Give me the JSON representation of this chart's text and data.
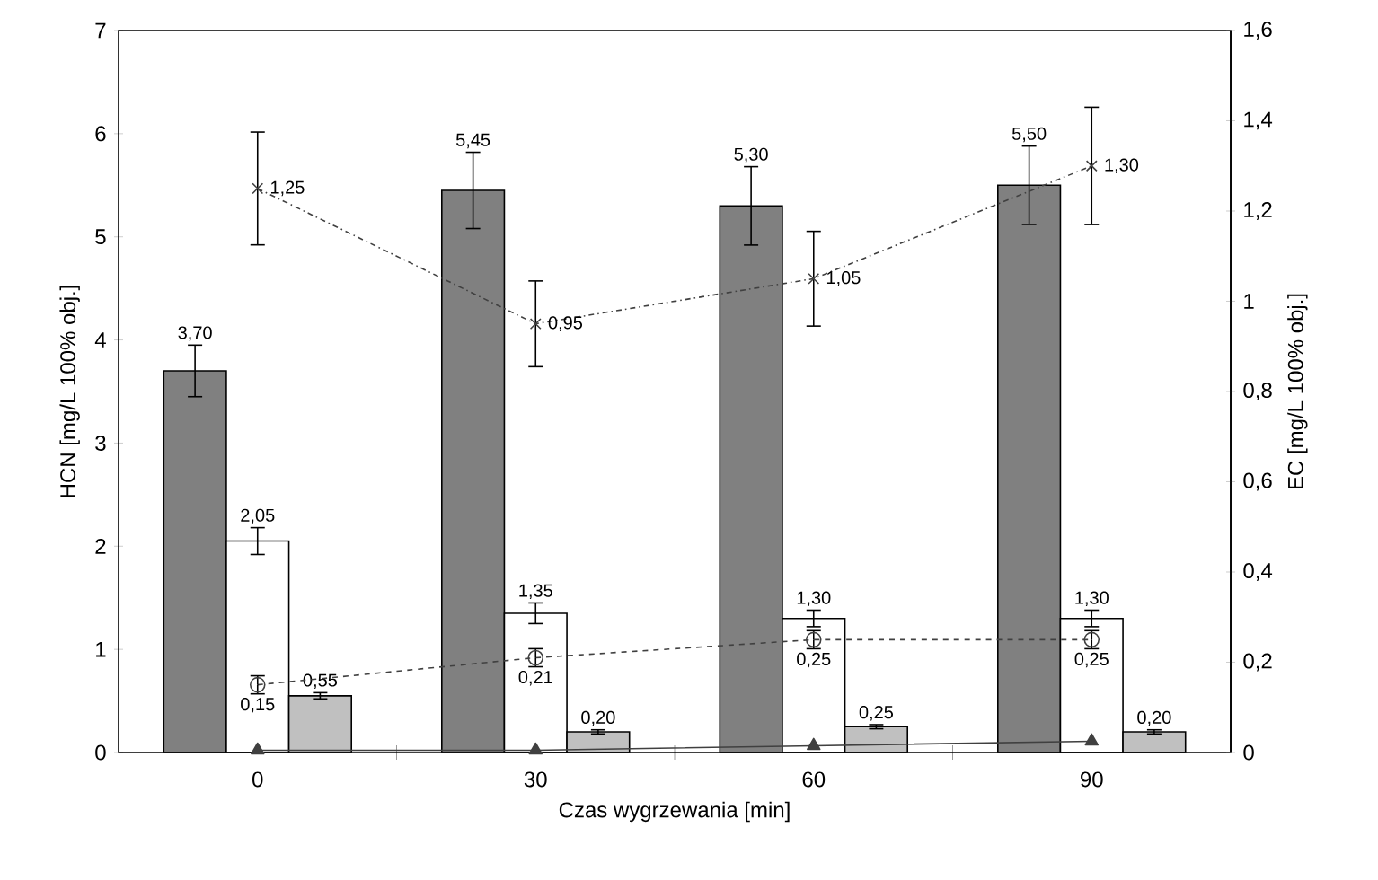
{
  "chart_data": {
    "type": "bar",
    "xlabel": "Czas wygrzewania [min]",
    "ylabel": "HCN [mg/L 100% obj.]",
    "y2label": "EC [mg/L 100% obj.]",
    "categories": [
      "0",
      "30",
      "60",
      "90"
    ],
    "ylim": [
      0,
      7
    ],
    "yticks": [
      0,
      1,
      2,
      3,
      4,
      5,
      6,
      7
    ],
    "y2lim": [
      0,
      1.6
    ],
    "y2ticks": [
      0,
      {
        "value": 0.2,
        "label": "0,2"
      },
      {
        "value": 0.4,
        "label": "0,4"
      },
      {
        "value": 0.6,
        "label": "0,6"
      },
      {
        "value": 0.8,
        "label": "0,8"
      },
      1,
      {
        "value": 1.2,
        "label": "1,2"
      },
      {
        "value": 1.4,
        "label": "1,4"
      },
      {
        "value": 1.6,
        "label": "1,6"
      }
    ],
    "series": [
      {
        "color": "#808080",
        "values": [
          3.7,
          5.45,
          5.3,
          5.5
        ],
        "errors": [
          0.25,
          0.37,
          0.38,
          0.38
        ],
        "value_labels": [
          "3,70",
          "5,45",
          "5,30",
          "5,50"
        ]
      },
      {
        "color": "#ffffff",
        "values": [
          2.05,
          1.35,
          1.3,
          1.3
        ],
        "errors": [
          0.13,
          0.1,
          0.08,
          0.08
        ],
        "value_labels": [
          "2,05",
          "1,35",
          "1,30",
          "1,30"
        ]
      },
      {
        "color": "#c0c0c0",
        "values": [
          0.55,
          0.2,
          0.25,
          0.2
        ],
        "errors": [
          0.03,
          0.02,
          0.02,
          0.02
        ],
        "value_labels": [
          "0,55",
          "0,20",
          "0,25",
          "0,20"
        ]
      },
      {
        "type": "line",
        "axis": "y2",
        "color": "#404040",
        "marker": "cross",
        "line_style": "dashdot",
        "values": [
          1.25,
          0.95,
          1.05,
          1.3
        ],
        "errors": [
          0.125,
          0.095,
          0.105,
          0.13
        ],
        "value_labels": [
          "1,25",
          "0,95",
          "1,05",
          "1,30"
        ]
      },
      {
        "type": "line",
        "axis": "y2",
        "color": "#404040",
        "marker": "circle",
        "line_style": "dashed",
        "values": [
          0.15,
          0.21,
          0.25,
          0.25
        ],
        "errors": [
          0.02,
          0.02,
          0.02,
          0.02
        ],
        "value_labels": [
          "0,15",
          "0,21",
          "0,25",
          "0,25"
        ]
      },
      {
        "type": "line",
        "axis": "y2",
        "color": "#404040",
        "marker": "triangle",
        "line_style": "solid",
        "values": [
          0.005,
          0.005,
          0.015,
          0.025
        ]
      }
    ]
  }
}
